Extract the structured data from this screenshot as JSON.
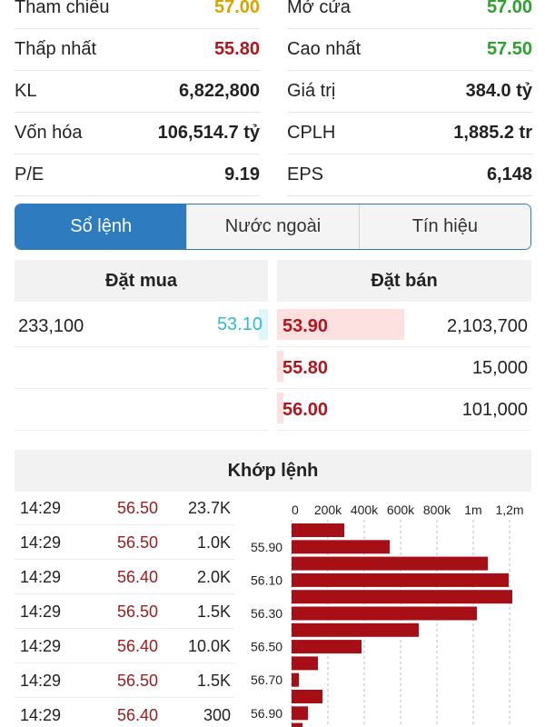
{
  "stats": {
    "rows": [
      {
        "left": {
          "label": "Tham chiếu",
          "value": "57.00",
          "color": "yellow"
        },
        "right": {
          "label": "Mở cửa",
          "value": "57.00",
          "color": "green"
        }
      },
      {
        "left": {
          "label": "Thấp nhất",
          "value": "55.80",
          "color": "red"
        },
        "right": {
          "label": "Cao nhất",
          "value": "57.50",
          "color": "green"
        }
      },
      {
        "left": {
          "label": "KL",
          "value": "6,822,800",
          "color": "default"
        },
        "right": {
          "label": "Giá trị",
          "value": "384.0 tỷ",
          "color": "default"
        }
      },
      {
        "left": {
          "label": "Vốn hóa",
          "value": "106,514.7 tỷ",
          "color": "default"
        },
        "right": {
          "label": "CPLH",
          "value": "1,885.2 tr",
          "color": "default"
        }
      },
      {
        "left": {
          "label": "P/E",
          "value": "9.19",
          "color": "default"
        },
        "right": {
          "label": "EPS",
          "value": "6,148",
          "color": "default"
        }
      }
    ]
  },
  "tabs": [
    {
      "label": "Sổ lệnh",
      "active": true
    },
    {
      "label": "Nước ngoài",
      "active": false
    },
    {
      "label": "Tín hiệu",
      "active": false
    }
  ],
  "order_book": {
    "buy_header": "Đặt mua",
    "sell_header": "Đặt bán",
    "bids": [
      {
        "qty": "233,100",
        "price": "53.10"
      }
    ],
    "asks": [
      {
        "price": "53.90",
        "qty": "2,103,700",
        "bar_fraction": 1.0
      },
      {
        "price": "55.80",
        "qty": "15,000",
        "bar_fraction": 0.05
      },
      {
        "price": "56.00",
        "qty": "101,000",
        "bar_fraction": 0.05
      }
    ]
  },
  "matched": {
    "header": "Khớp lệnh",
    "trades": [
      {
        "time": "14:29",
        "price": "56.50",
        "volume": "23.7K"
      },
      {
        "time": "14:29",
        "price": "56.50",
        "volume": "1.0K"
      },
      {
        "time": "14:29",
        "price": "56.40",
        "volume": "2.0K"
      },
      {
        "time": "14:29",
        "price": "56.50",
        "volume": "1.5K"
      },
      {
        "time": "14:29",
        "price": "56.40",
        "volume": "10.0K"
      },
      {
        "time": "14:29",
        "price": "56.50",
        "volume": "1.5K"
      },
      {
        "time": "14:29",
        "price": "56.40",
        "volume": "300"
      }
    ]
  },
  "chart_data": {
    "type": "bar",
    "orientation": "horizontal",
    "x_ticks": [
      "0",
      "200k",
      "400k",
      "600k",
      "800k",
      "1m",
      "1,2m"
    ],
    "x_tick_values": [
      0,
      200000,
      400000,
      600000,
      800000,
      1000000,
      1200000
    ],
    "xlim": [
      0,
      1200000
    ],
    "y_tick_labels": [
      "55.90",
      "56.10",
      "56.30",
      "56.50",
      "56.70",
      "56.90"
    ],
    "categories": [
      "55.80",
      "55.90",
      "56.00",
      "56.10",
      "56.20",
      "56.30",
      "56.40",
      "56.50",
      "56.60",
      "56.70",
      "56.80",
      "56.90",
      "57.00"
    ],
    "values": [
      290000,
      540000,
      1080000,
      1195000,
      1215000,
      1020000,
      700000,
      385000,
      145000,
      40000,
      170000,
      90000,
      60000
    ],
    "bar_color": "#a50f15",
    "grid": "vertical dashed"
  }
}
